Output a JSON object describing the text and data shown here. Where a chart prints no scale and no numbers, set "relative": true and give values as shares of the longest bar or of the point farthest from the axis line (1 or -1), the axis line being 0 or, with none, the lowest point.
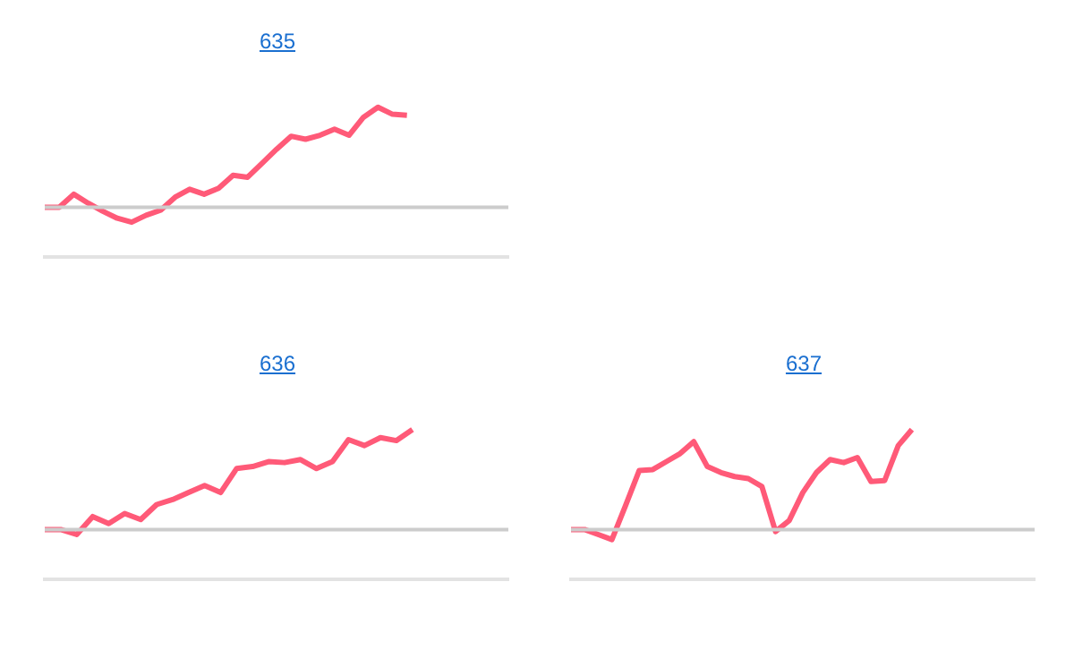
{
  "chart_data": [
    {
      "type": "line",
      "title": "635",
      "relative": true,
      "categories": [
        null,
        null,
        null,
        null,
        null,
        null,
        null,
        null,
        null,
        null,
        null,
        null,
        null,
        null,
        null,
        null,
        null,
        null,
        null,
        null,
        null,
        null,
        null,
        null,
        null,
        null,
        null,
        null,
        null,
        null,
        null,
        null,
        null
      ],
      "series": [
        {
          "color": "#ff5a78",
          "values": [
            0,
            0,
            0.13,
            0.04,
            -0.04,
            -0.11,
            -0.15,
            -0.08,
            -0.03,
            0.1,
            0.18,
            0.13,
            0.19,
            0.32,
            0.3,
            0.44,
            0.58,
            0.71,
            0.68,
            0.72,
            0.78,
            0.72,
            0.9,
            1,
            0.93,
            0.92,
            null,
            null,
            null,
            null,
            null,
            null,
            null
          ]
        }
      ]
    },
    {
      "type": "line",
      "title": "636",
      "relative": true,
      "categories": [
        null,
        null,
        null,
        null,
        null,
        null,
        null,
        null,
        null,
        null,
        null,
        null,
        null,
        null,
        null,
        null,
        null,
        null,
        null,
        null,
        null,
        null,
        null,
        null,
        null,
        null,
        null,
        null,
        null,
        null
      ],
      "series": [
        {
          "color": "#ff5a78",
          "values": [
            0,
            0,
            -0.05,
            0.13,
            0.06,
            0.16,
            0.1,
            0.25,
            0.3,
            0.37,
            0.44,
            0.37,
            0.61,
            0.63,
            0.68,
            0.67,
            0.7,
            0.61,
            0.68,
            0.9,
            0.84,
            0.92,
            0.89,
            1,
            null,
            null,
            null,
            null,
            null,
            null
          ]
        }
      ]
    },
    {
      "type": "line",
      "title": "637",
      "relative": true,
      "categories": [
        null,
        null,
        null,
        null,
        null,
        null,
        null,
        null,
        null,
        null,
        null,
        null,
        null,
        null,
        null,
        null,
        null,
        null,
        null,
        null,
        null,
        null,
        null,
        null,
        null,
        null,
        null,
        null,
        null,
        null,
        null,
        null,
        null,
        null,
        null
      ],
      "series": [
        {
          "color": "#ff5a78",
          "values": [
            0,
            0,
            -0.05,
            -0.1,
            0.24,
            0.59,
            0.6,
            0.68,
            0.76,
            0.88,
            0.63,
            0.57,
            0.53,
            0.51,
            0.43,
            -0.02,
            0.09,
            0.37,
            0.57,
            0.7,
            0.67,
            0.72,
            0.48,
            0.49,
            0.84,
            1,
            null,
            null,
            null,
            null,
            null,
            null,
            null,
            null,
            null
          ]
        }
      ]
    }
  ]
}
